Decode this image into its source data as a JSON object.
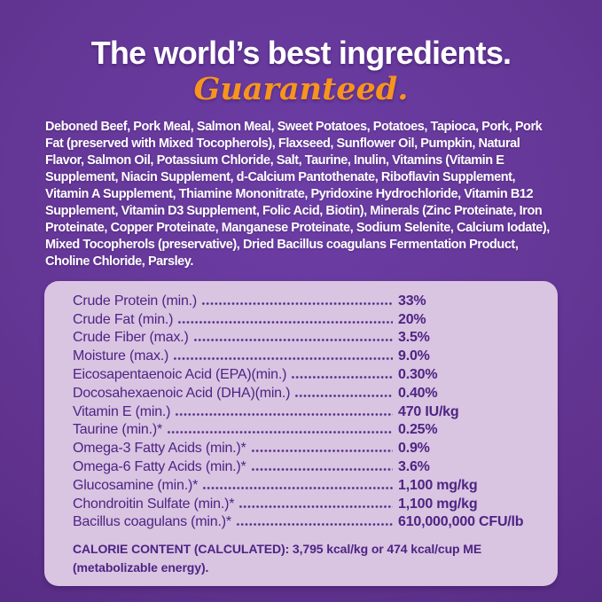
{
  "colors": {
    "background_purple": "#61338f",
    "accent_orange": "#f7941e",
    "panel_background": "#d9c4e2",
    "panel_text_purple": "#4e2483",
    "headline_white": "#ffffff"
  },
  "header": {
    "title": "The world’s best ingredients.",
    "subtitle": "Guaranteed."
  },
  "ingredients_paragraph": "Deboned Beef, Pork Meal, Salmon Meal, Sweet Potatoes, Potatoes, Tapioca, Pork, Pork Fat (preserved with Mixed Tocopherols), Flaxseed, Sunflower Oil, Pumpkin, Natural Flavor, Salmon Oil, Potassium Chloride, Salt, Taurine, Inulin, Vitamins (Vitamin E Supplement, Niacin Supplement, d-Calcium Pantothenate, Riboflavin Supplement, Vitamin A Supplement, Thiamine Mononitrate, Pyridoxine Hydrochloride, Vitamin B12 Supplement, Vitamin D3 Supplement, Folic Acid, Biotin), Minerals (Zinc Proteinate, Iron Proteinate, Copper Proteinate, Manganese Proteinate, Sodium Selenite, Calcium Iodate), Mixed Tocopherols (preservative), Dried Bacillus coagulans Fermentation Product, Choline Chloride, Parsley.",
  "guaranteed_analysis": {
    "rows": [
      {
        "label": "Crude Protein (min.)",
        "value": "33%"
      },
      {
        "label": "Crude Fat (min.)",
        "value": "20%"
      },
      {
        "label": "Crude Fiber (max.)",
        "value": "3.5%"
      },
      {
        "label": "Moisture (max.)",
        "value": "9.0%"
      },
      {
        "label": "Eicosapentaenoic Acid (EPA)(min.)",
        "value": "0.30%"
      },
      {
        "label": "Docosahexaenoic Acid (DHA)(min.)",
        "value": "0.40%"
      },
      {
        "label": "Vitamin E (min.)",
        "value": "470 IU/kg"
      },
      {
        "label": "Taurine (min.)*",
        "value": "0.25%"
      },
      {
        "label": "Omega-3 Fatty Acids (min.)*",
        "value": "0.9%"
      },
      {
        "label": "Omega-6 Fatty Acids (min.)*",
        "value": "3.6%"
      },
      {
        "label": "Glucosamine (min.)*",
        "value": "1,100 mg/kg"
      },
      {
        "label": "Chondroitin Sulfate (min.)*",
        "value": "1,100 mg/kg"
      },
      {
        "label": "Bacillus coagulans (min.)*",
        "value": "610,000,000 CFU/lb"
      }
    ],
    "calorie_note": "CALORIE CONTENT (CALCULATED): 3,795 kcal/kg or 474 kcal/cup ME (metabolizable energy)."
  }
}
